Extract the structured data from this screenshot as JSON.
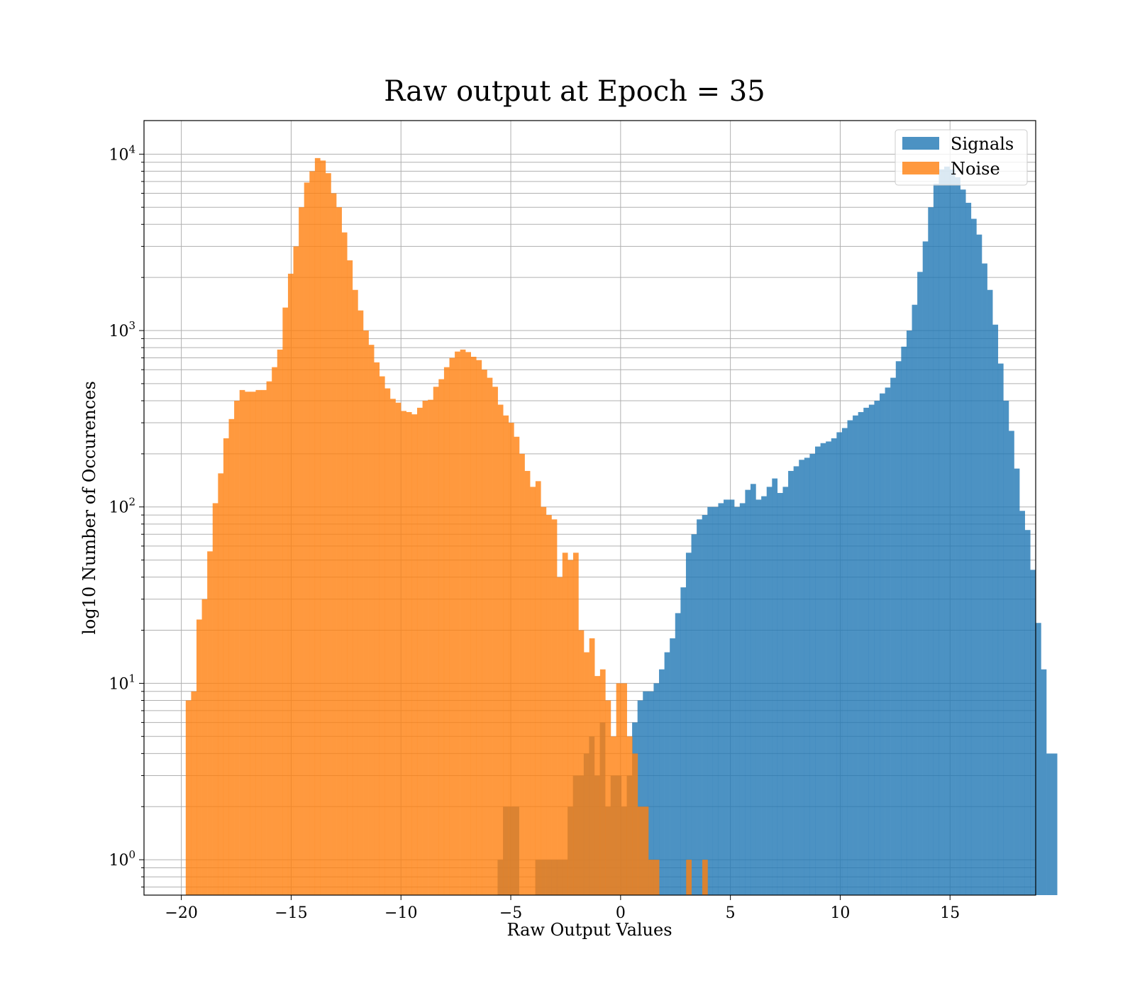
{
  "chart_data": {
    "type": "histogram",
    "title": "Raw output at Epoch = 35",
    "xlabel": "Raw Output Values",
    "ylabel": "log10 Number of Occurences",
    "xlim": [
      -21.7,
      18.9
    ],
    "ylim": [
      0.63,
      15500
    ],
    "yscale": "log",
    "grid": true,
    "legend_position": "top-right",
    "x_ticks": [
      -20,
      -15,
      -10,
      -5,
      0,
      5,
      10,
      15
    ],
    "x_tick_labels": [
      "−20",
      "−15",
      "−10",
      "−5",
      "0",
      "5",
      "10",
      "15"
    ],
    "y_ticks": [
      {
        "value": 1,
        "base": "10",
        "exp": "0"
      },
      {
        "value": 10,
        "base": "10",
        "exp": "1"
      },
      {
        "value": 100,
        "base": "10",
        "exp": "2"
      },
      {
        "value": 1000,
        "base": "10",
        "exp": "3"
      },
      {
        "value": 10000,
        "base": "10",
        "exp": "4"
      }
    ],
    "series": [
      {
        "name": "Signals",
        "color": "#1f77b4",
        "opacity": 0.8,
        "bin_start": -5.6,
        "bin_width": 0.245,
        "counts": [
          1,
          2,
          2,
          2,
          0,
          0,
          0,
          1,
          1,
          1,
          1,
          1,
          1,
          2,
          3,
          3,
          4,
          5,
          3,
          6,
          2,
          3,
          3,
          2,
          3,
          6,
          8,
          9,
          9,
          10,
          12,
          15,
          18,
          25,
          35,
          55,
          70,
          85,
          90,
          100,
          100,
          105,
          110,
          110,
          100,
          105,
          125,
          135,
          110,
          115,
          130,
          145,
          120,
          130,
          160,
          170,
          185,
          190,
          200,
          220,
          230,
          235,
          245,
          265,
          280,
          310,
          330,
          345,
          365,
          380,
          400,
          440,
          475,
          540,
          670,
          810,
          1000,
          1400,
          2150,
          3200,
          5000,
          6800,
          8200,
          8500,
          8200,
          7400,
          6300,
          5300,
          4300,
          3500,
          2400,
          1700,
          1080,
          650,
          400,
          270,
          165,
          95,
          74,
          44,
          22,
          12,
          4,
          4
        ]
      },
      {
        "name": "Noise",
        "color": "#ff7f0e",
        "opacity": 0.8,
        "bin_start": -19.8,
        "bin_width": 0.245,
        "counts": [
          8,
          9,
          23,
          30,
          56,
          105,
          155,
          245,
          315,
          400,
          460,
          450,
          450,
          460,
          460,
          515,
          620,
          780,
          1350,
          2100,
          3000,
          5000,
          6900,
          8000,
          9500,
          9200,
          7800,
          6000,
          5000,
          3600,
          2500,
          1700,
          1300,
          1000,
          830,
          660,
          550,
          470,
          410,
          390,
          350,
          345,
          335,
          365,
          400,
          405,
          480,
          530,
          620,
          700,
          760,
          780,
          755,
          710,
          680,
          600,
          540,
          480,
          380,
          330,
          300,
          250,
          200,
          160,
          130,
          140,
          100,
          90,
          85,
          40,
          55,
          50,
          55,
          20,
          15,
          18,
          11,
          12,
          8,
          5,
          10,
          10,
          5,
          4,
          2,
          2,
          1,
          1,
          0,
          0,
          0,
          0,
          0,
          1,
          0,
          0,
          1
        ]
      }
    ]
  }
}
